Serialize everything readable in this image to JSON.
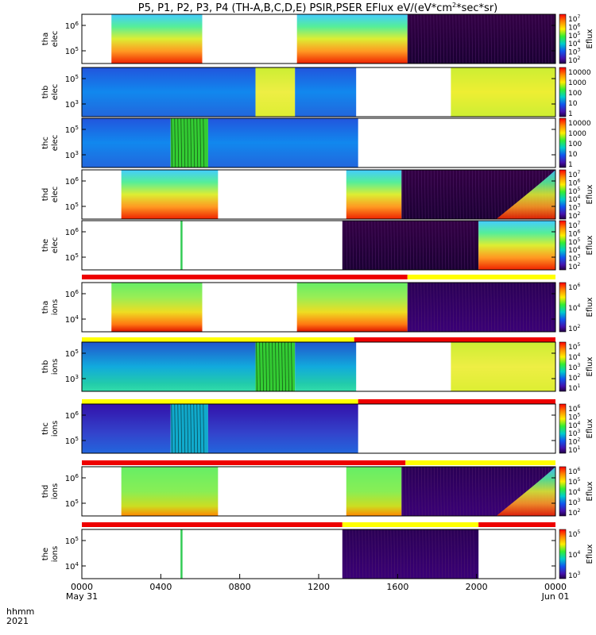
{
  "title": "P5, P1, P2, P3, P4 (TH-A,B,C,D,E) PSIR,PSER EFlux eV/(eV*cm",
  "title_sup": "2",
  "title_tail": "*sec*sr)",
  "x_axis": {
    "label_line1": "hhmm",
    "label_line2": "2021",
    "ticks": [
      {
        "time": "0000",
        "date": "May 31",
        "hour": 0
      },
      {
        "time": "0400",
        "date": "",
        "hour": 4
      },
      {
        "time": "0800",
        "date": "",
        "hour": 8
      },
      {
        "time": "1200",
        "date": "",
        "hour": 12
      },
      {
        "time": "1600",
        "date": "",
        "hour": 16
      },
      {
        "time": "2000",
        "date": "",
        "hour": 20
      },
      {
        "time": "0000",
        "date": "Jun 01",
        "hour": 24
      }
    ],
    "range_hours": [
      0,
      24
    ]
  },
  "colors": {
    "bar_red": "#ee0000",
    "bar_yellow": "#ffff00"
  },
  "chart_data": [
    {
      "type": "heatmap",
      "probe": "tha",
      "ylabel": [
        "tha",
        "elec"
      ],
      "yticks": [
        "10^6",
        "10^5"
      ],
      "cbar_label": "Eflux",
      "cbar_ticks": [
        "10^7",
        "10^6",
        "10^5",
        "10^4",
        "10^3",
        "10^2"
      ],
      "data_intervals": [
        [
          1.5,
          6.1,
          "elecLow"
        ],
        [
          10.9,
          16.5,
          "elecLow"
        ],
        [
          16.5,
          24,
          "quiet"
        ]
      ]
    },
    {
      "type": "heatmap",
      "probe": "thb",
      "ylabel": [
        "thb",
        "elec"
      ],
      "yticks": [
        "10^5",
        "10^3"
      ],
      "cbar_label": "",
      "cbar_ticks": [
        "10000",
        "1000",
        "100",
        "10",
        "1"
      ],
      "data_intervals": [
        [
          0,
          8.8,
          "blueNoise"
        ],
        [
          8.8,
          10.8,
          "green"
        ],
        [
          10.8,
          13.9,
          "blueNoise"
        ],
        [
          18.7,
          24,
          "yellowBand"
        ]
      ]
    },
    {
      "type": "heatmap",
      "probe": "thc",
      "ylabel": [
        "thc",
        "elec"
      ],
      "yticks": [
        "10^5",
        "10^3"
      ],
      "cbar_label": "",
      "cbar_ticks": [
        "10000",
        "1000",
        "100",
        "10",
        "1"
      ],
      "data_intervals": [
        [
          0,
          4.5,
          "blueNoise"
        ],
        [
          4.5,
          6.4,
          "greenNoise"
        ],
        [
          6.4,
          14.0,
          "blueNoise"
        ]
      ]
    },
    {
      "type": "heatmap",
      "probe": "thd",
      "ylabel": [
        "thd",
        "elec"
      ],
      "yticks": [
        "10^6",
        "10^5"
      ],
      "cbar_label": "Eflux",
      "cbar_ticks": [
        "10^7",
        "10^6",
        "10^5",
        "10^4",
        "10^3",
        "10^2"
      ],
      "data_intervals": [
        [
          2.0,
          6.9,
          "elecLow"
        ],
        [
          13.4,
          16.2,
          "elecLow"
        ],
        [
          16.2,
          24,
          "quietHot"
        ]
      ]
    },
    {
      "type": "heatmap",
      "probe": "the",
      "ylabel": [
        "the",
        "elec"
      ],
      "yticks": [
        "10^6",
        "10^5"
      ],
      "cbar_label": "Eflux",
      "cbar_ticks": [
        "10^7",
        "10^6",
        "10^5",
        "10^4",
        "10^3",
        "10^2"
      ],
      "data_intervals": [
        [
          5.0,
          5.1,
          "spike"
        ],
        [
          13.2,
          20.1,
          "quiet"
        ],
        [
          20.1,
          24,
          "hotRamp"
        ]
      ],
      "mode_bar": [
        [
          0,
          16.5,
          "red"
        ],
        [
          16.5,
          24,
          "yellow"
        ]
      ]
    },
    {
      "type": "heatmap",
      "probe": "tha",
      "ylabel": [
        "tha",
        "ions"
      ],
      "yticks": [
        "10^6",
        "10^4"
      ],
      "cbar_label": "Eflux",
      "cbar_ticks": [
        "10^6",
        "10^4",
        "10^2"
      ],
      "data_intervals": [
        [
          1.5,
          6.1,
          "ionLow"
        ],
        [
          10.9,
          16.5,
          "ionLow"
        ],
        [
          16.5,
          24,
          "quietIon"
        ]
      ],
      "mode_bar": [
        [
          0,
          13.8,
          "yellow"
        ],
        [
          13.8,
          24,
          "red"
        ]
      ]
    },
    {
      "type": "heatmap",
      "probe": "thb",
      "ylabel": [
        "thb",
        "ions"
      ],
      "yticks": [
        "10^5",
        "10^3"
      ],
      "cbar_label": "Eflux",
      "cbar_ticks": [
        "10^5",
        "10^4",
        "10^3",
        "10^2",
        "10^1"
      ],
      "data_intervals": [
        [
          0,
          8.8,
          "ionBlue"
        ],
        [
          8.8,
          10.8,
          "greenNoise"
        ],
        [
          10.8,
          13.9,
          "ionBlue"
        ],
        [
          18.7,
          24,
          "green"
        ]
      ],
      "mode_bar": [
        [
          0,
          14.0,
          "yellow"
        ],
        [
          14.0,
          24,
          "red"
        ]
      ]
    },
    {
      "type": "heatmap",
      "probe": "thc",
      "ylabel": [
        "thc",
        "ions"
      ],
      "yticks": [
        "10^6",
        "10^5"
      ],
      "cbar_label": "Eflux",
      "cbar_ticks": [
        "10^6",
        "10^5",
        "10^4",
        "10^3",
        "10^2",
        "10^1"
      ],
      "data_intervals": [
        [
          0,
          4.5,
          "ionPurple"
        ],
        [
          4.5,
          6.4,
          "cyanNoise"
        ],
        [
          6.4,
          14.0,
          "ionPurple"
        ]
      ],
      "mode_bar": [
        [
          0,
          16.4,
          "red"
        ],
        [
          16.4,
          24,
          "yellow"
        ]
      ]
    },
    {
      "type": "heatmap",
      "probe": "thd",
      "ylabel": [
        "thd",
        "ions"
      ],
      "yticks": [
        "10^6",
        "10^5"
      ],
      "cbar_label": "Eflux",
      "cbar_ticks": [
        "10^6",
        "10^5",
        "10^4",
        "10^3",
        "10^2"
      ],
      "data_intervals": [
        [
          2.0,
          6.9,
          "ionMid"
        ],
        [
          13.4,
          16.2,
          "ionMid"
        ],
        [
          16.2,
          24,
          "quietIonHot"
        ]
      ],
      "mode_bar": [
        [
          0,
          13.2,
          "red"
        ],
        [
          13.2,
          20.1,
          "yellow"
        ],
        [
          20.1,
          24,
          "red"
        ]
      ]
    },
    {
      "type": "heatmap",
      "probe": "the",
      "ylabel": [
        "the",
        "ions"
      ],
      "yticks": [
        "10^5",
        "10^4"
      ],
      "cbar_label": "Eflux",
      "cbar_ticks": [
        "10^5",
        "10^4",
        "10^3"
      ],
      "data_intervals": [
        [
          5.0,
          5.1,
          "spike"
        ],
        [
          13.2,
          20.1,
          "quietIon"
        ]
      ]
    }
  ]
}
